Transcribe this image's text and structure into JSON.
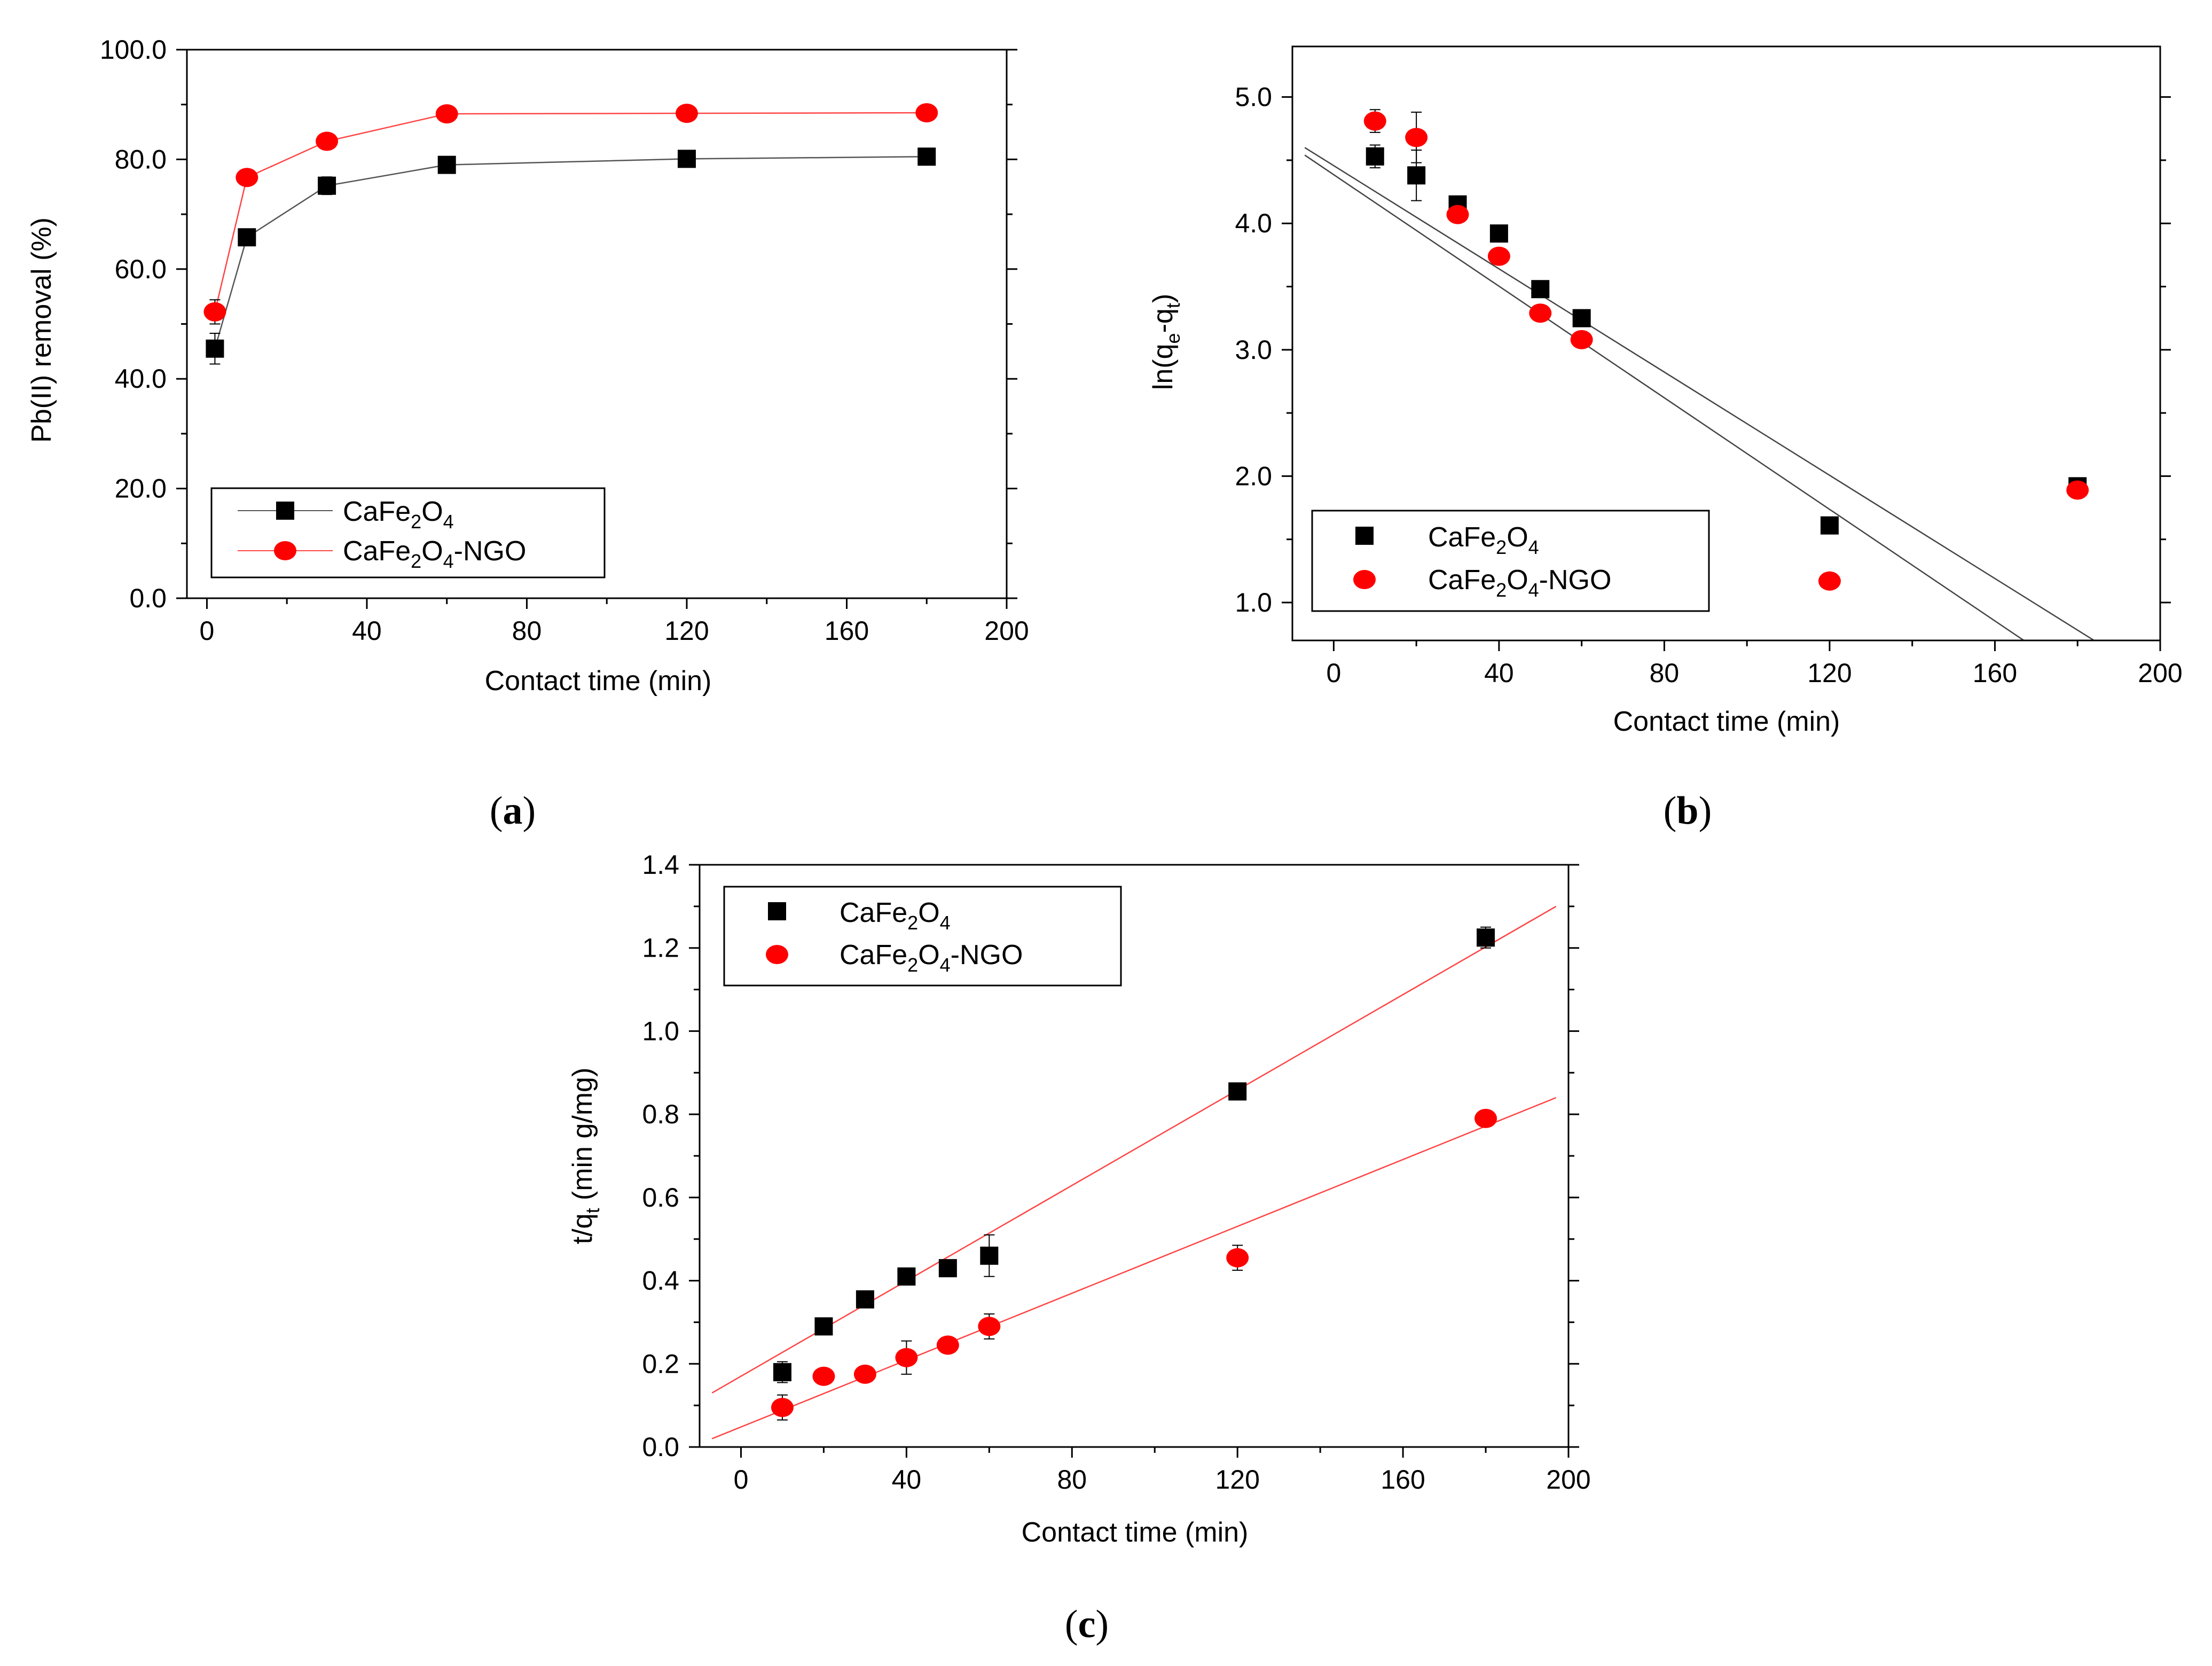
{
  "chart_data": [
    {
      "id": "a",
      "type": "line",
      "panel_label": "a",
      "xlabel": "Contact time (min)",
      "ylabel": "Pb(II) removal (%)",
      "xlim": [
        -5,
        200
      ],
      "ylim": [
        0,
        100
      ],
      "xticks": [
        0,
        40,
        80,
        120,
        160,
        200
      ],
      "xtick_labels": [
        "0",
        "40",
        "80",
        "120",
        "160",
        "200"
      ],
      "yticks": [
        0,
        20,
        40,
        60,
        80,
        100
      ],
      "ytick_labels": [
        "0.0",
        "20.0",
        "40.0",
        "60.0",
        "80.0",
        "100.0"
      ],
      "legend_position": "lower-left",
      "series": [
        {
          "name": "CaFe2O4",
          "label_parts": [
            "CaFe",
            "2",
            "O",
            "4",
            ""
          ],
          "marker": "square",
          "color": "#000000",
          "line_color": "#555555",
          "connect": true,
          "x": [
            2,
            10,
            30,
            60,
            120,
            180
          ],
          "y": [
            45.5,
            65.8,
            75.2,
            79.0,
            80.1,
            80.5
          ],
          "err": [
            2.8,
            0.8,
            1.6,
            0.6,
            0.4,
            0.4
          ]
        },
        {
          "name": "CaFe2O4-NGO",
          "label_parts": [
            "CaFe",
            "2",
            "O",
            "4",
            "-NGO"
          ],
          "marker": "circle",
          "color": "#ff0000",
          "line_color": "#ff4444",
          "connect": true,
          "x": [
            2,
            10,
            30,
            60,
            120,
            180
          ],
          "y": [
            52.2,
            76.7,
            83.3,
            88.3,
            88.4,
            88.5
          ],
          "err": [
            2.2,
            0.6,
            0.6,
            0.6,
            0.4,
            0.4
          ]
        }
      ]
    },
    {
      "id": "b",
      "type": "scatter",
      "panel_label": "b",
      "xlabel": "Contact time (min)",
      "ylabel_parts": [
        "ln(q",
        "e",
        "-q",
        "t",
        ")"
      ],
      "ylabel": "ln(qe-qt)",
      "xlim": [
        -10,
        200
      ],
      "ylim": [
        0.7,
        5.4
      ],
      "xticks": [
        0,
        40,
        80,
        120,
        160,
        200
      ],
      "xtick_labels": [
        "0",
        "40",
        "80",
        "120",
        "160",
        "200"
      ],
      "yticks": [
        1,
        2,
        3,
        4,
        5
      ],
      "ytick_labels": [
        "1.0",
        "2.0",
        "3.0",
        "4.0",
        "5.0"
      ],
      "legend_position": "lower-left",
      "series": [
        {
          "name": "CaFe2O4",
          "label_parts": [
            "CaFe",
            "2",
            "O",
            "4",
            ""
          ],
          "marker": "square",
          "color": "#000000",
          "x": [
            10,
            20,
            30,
            40,
            50,
            60,
            120,
            180
          ],
          "y": [
            4.53,
            4.38,
            4.15,
            3.92,
            3.48,
            3.25,
            1.61,
            1.92
          ],
          "err": [
            0.09,
            0.2,
            0.03,
            0.03,
            0.03,
            0.03,
            0.03,
            0.03
          ]
        },
        {
          "name": "CaFe2O4-NGO",
          "label_parts": [
            "CaFe",
            "2",
            "O",
            "4",
            "-NGO"
          ],
          "marker": "circle",
          "color": "#ff0000",
          "x": [
            10,
            20,
            30,
            40,
            50,
            60,
            120,
            180
          ],
          "y": [
            4.81,
            4.68,
            4.07,
            3.74,
            3.29,
            3.08,
            1.17,
            1.89
          ],
          "err": [
            0.09,
            0.2,
            0.03,
            0.03,
            0.03,
            0.03,
            0.03,
            0.03
          ]
        }
      ],
      "fit_lines": [
        {
          "color": "#444444",
          "x": [
            -7,
            184
          ],
          "y": [
            4.6,
            0.7
          ]
        },
        {
          "color": "#444444",
          "x": [
            -7,
            167
          ],
          "y": [
            4.54,
            0.7
          ]
        }
      ]
    },
    {
      "id": "c",
      "type": "scatter",
      "panel_label": "c",
      "xlabel": "Contact time (min)",
      "ylabel_parts": [
        "t/q",
        "t",
        " (min g/mg)",
        "",
        ""
      ],
      "ylabel": "t/qt (min g/mg)",
      "xlim": [
        -10,
        200
      ],
      "ylim": [
        0,
        1.4
      ],
      "xticks": [
        0,
        40,
        80,
        120,
        160,
        200
      ],
      "xtick_labels": [
        "0",
        "40",
        "80",
        "120",
        "160",
        "200"
      ],
      "yticks": [
        0,
        0.2,
        0.4,
        0.6,
        0.8,
        1.0,
        1.2,
        1.4
      ],
      "ytick_labels": [
        "0.0",
        "0.2",
        "0.4",
        "0.6",
        "0.8",
        "1.0",
        "1.2",
        "1.4"
      ],
      "legend_position": "top-left",
      "series": [
        {
          "name": "CaFe2O4",
          "label_parts": [
            "CaFe",
            "2",
            "O",
            "4",
            ""
          ],
          "marker": "square",
          "color": "#000000",
          "x": [
            10,
            20,
            30,
            40,
            50,
            60,
            120,
            180
          ],
          "y": [
            0.18,
            0.29,
            0.355,
            0.41,
            0.43,
            0.46,
            0.855,
            1.225
          ],
          "err": [
            0.025,
            0.01,
            0.01,
            0.01,
            0.01,
            0.05,
            0.01,
            0.025
          ]
        },
        {
          "name": "CaFe2O4-NGO",
          "label_parts": [
            "CaFe",
            "2",
            "O",
            "4",
            "-NGO"
          ],
          "marker": "circle",
          "color": "#ff0000",
          "x": [
            10,
            20,
            30,
            40,
            50,
            60,
            120,
            180
          ],
          "y": [
            0.095,
            0.17,
            0.175,
            0.215,
            0.245,
            0.29,
            0.455,
            0.79
          ],
          "err": [
            0.03,
            0.01,
            0.01,
            0.04,
            0.01,
            0.03,
            0.03,
            0.01
          ]
        }
      ],
      "fit_lines": [
        {
          "color": "#ff4444",
          "x": [
            -7,
            197
          ],
          "y": [
            0.13,
            1.3
          ]
        },
        {
          "color": "#ff4444",
          "x": [
            -7,
            197
          ],
          "y": [
            0.02,
            0.84
          ]
        }
      ]
    }
  ]
}
